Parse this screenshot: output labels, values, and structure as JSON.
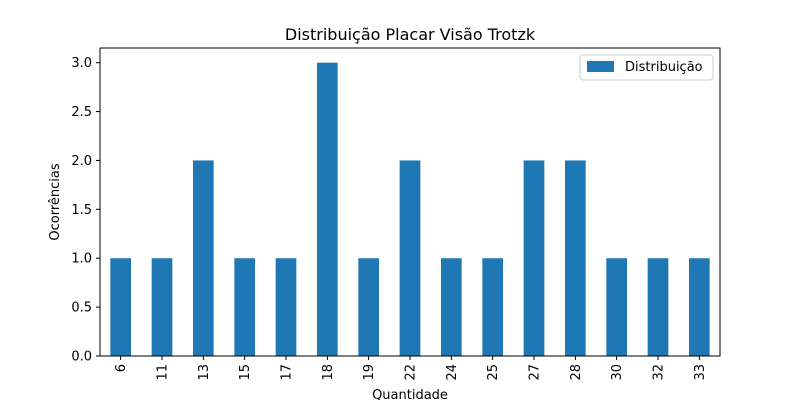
{
  "chart_data": {
    "type": "bar",
    "title": "Distribuição Placar Visão Trotzk",
    "xlabel": "Quantidade",
    "ylabel": "Ocorrências",
    "categories": [
      "6",
      "11",
      "13",
      "15",
      "17",
      "18",
      "19",
      "22",
      "24",
      "25",
      "27",
      "28",
      "30",
      "32",
      "33"
    ],
    "series": [
      {
        "name": "Distribuição",
        "values": [
          1,
          1,
          2,
          1,
          1,
          3,
          1,
          2,
          1,
          1,
          2,
          2,
          1,
          1,
          1
        ],
        "color": "#1f77b4"
      }
    ],
    "ylim": [
      0,
      3.15
    ],
    "yticks": [
      "0.0",
      "0.5",
      "1.0",
      "1.5",
      "2.0",
      "2.5",
      "3.0"
    ],
    "grid": false,
    "legend_position": "top-right"
  }
}
